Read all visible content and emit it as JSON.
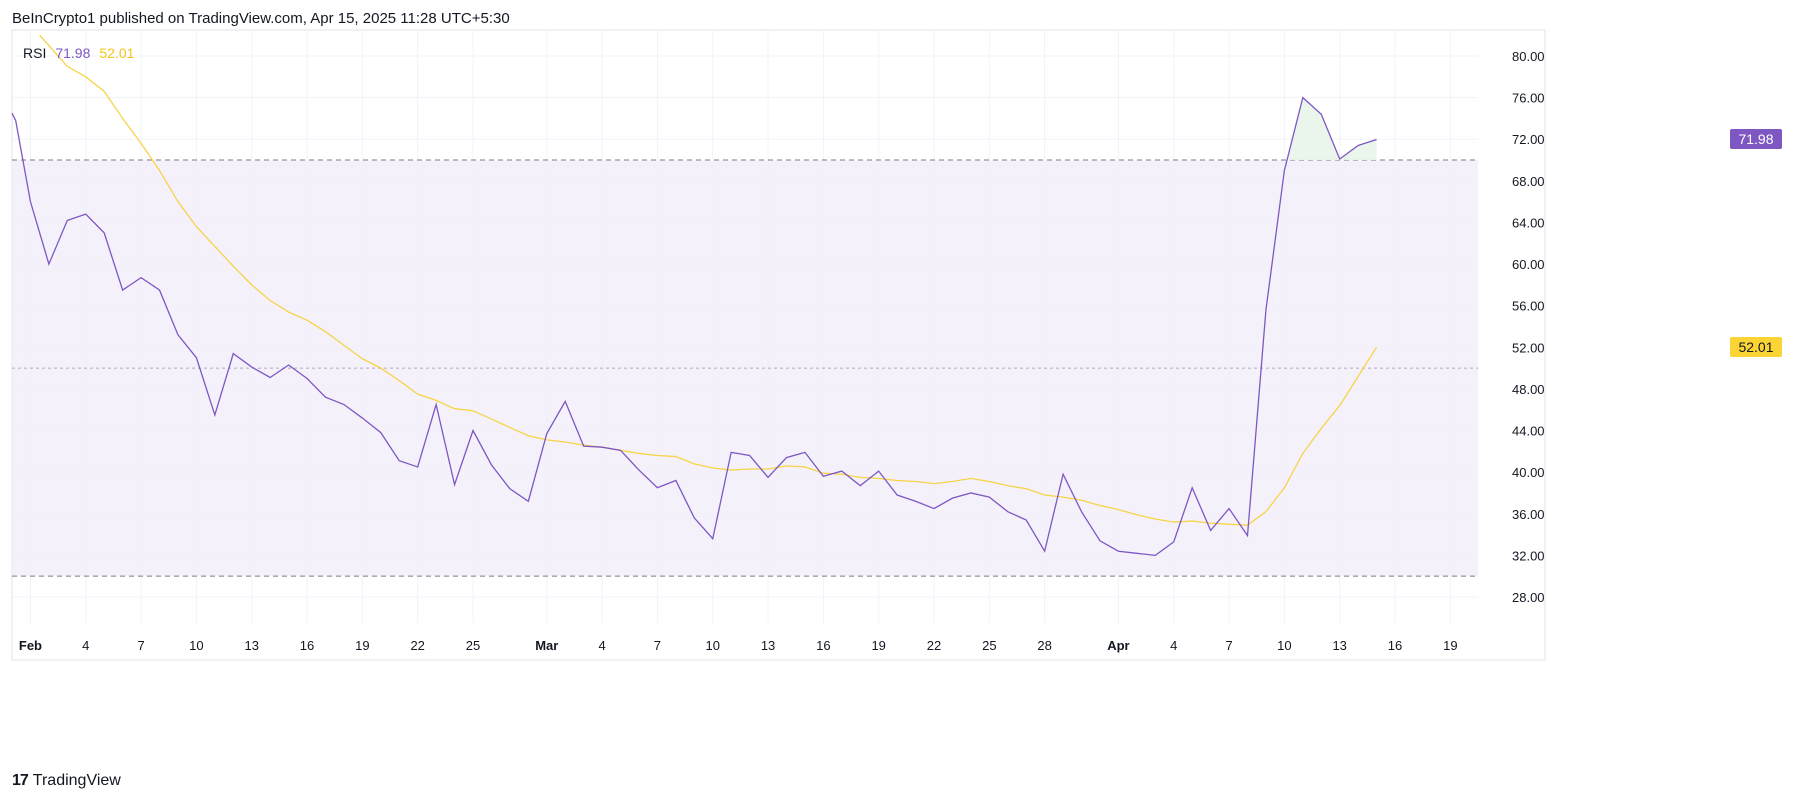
{
  "header": {
    "published_text": "BeInCrypto1 published on TradingView.com, Apr 15, 2025 11:28 UTC+5:30"
  },
  "footer": {
    "logo_glyph": "17",
    "brand": "TradingView"
  },
  "colors": {
    "rsi_line": "#7e57c2",
    "ma_line": "#f5d447",
    "band_fill": "#f3eefa",
    "ob_fill": "#e8f5e9",
    "rsi_badge_bg": "#7e57c2",
    "ma_badge_bg": "#fcd535",
    "grid": "#f0f3fa"
  },
  "chart_data": {
    "type": "line",
    "legend": {
      "name": "RSI",
      "rsi_value": "71.98",
      "ma_value": "52.01",
      "placement": "top-left"
    },
    "ylim": [
      25.5,
      82.5
    ],
    "y_ticks": [
      "80.00",
      "76.00",
      "72.00",
      "68.00",
      "64.00",
      "60.00",
      "56.00",
      "52.00",
      "48.00",
      "44.00",
      "40.00",
      "36.00",
      "32.00",
      "28.00"
    ],
    "x_ticks": [
      {
        "label": "Feb",
        "day": 1,
        "bold": true
      },
      {
        "label": "4",
        "day": 4
      },
      {
        "label": "7",
        "day": 7
      },
      {
        "label": "10",
        "day": 10
      },
      {
        "label": "13",
        "day": 13
      },
      {
        "label": "16",
        "day": 16
      },
      {
        "label": "19",
        "day": 19
      },
      {
        "label": "22",
        "day": 22
      },
      {
        "label": "25",
        "day": 25
      },
      {
        "label": "Mar",
        "day": 29,
        "bold": true
      },
      {
        "label": "4",
        "day": 32
      },
      {
        "label": "7",
        "day": 35
      },
      {
        "label": "10",
        "day": 38
      },
      {
        "label": "13",
        "day": 41
      },
      {
        "label": "16",
        "day": 44
      },
      {
        "label": "19",
        "day": 47
      },
      {
        "label": "22",
        "day": 50
      },
      {
        "label": "25",
        "day": 53
      },
      {
        "label": "28",
        "day": 56
      },
      {
        "label": "Apr",
        "day": 60,
        "bold": true
      },
      {
        "label": "4",
        "day": 63
      },
      {
        "label": "7",
        "day": 66
      },
      {
        "label": "10",
        "day": 69
      },
      {
        "label": "13",
        "day": 72
      },
      {
        "label": "16",
        "day": 75
      },
      {
        "label": "19",
        "day": 78
      }
    ],
    "x_range_days": [
      0,
      79.5
    ],
    "bands": {
      "upper": 70,
      "middle": 50,
      "lower": 30
    },
    "grid": true,
    "series": [
      {
        "key": "rsi",
        "points": [
          [
            0,
            74.5
          ],
          [
            0.2,
            73.8
          ],
          [
            1,
            66
          ],
          [
            2,
            60
          ],
          [
            3,
            64.2
          ],
          [
            4,
            64.8
          ],
          [
            5,
            63
          ],
          [
            6,
            57.5
          ],
          [
            7,
            58.7
          ],
          [
            8,
            57.5
          ],
          [
            9,
            53.2
          ],
          [
            10,
            51
          ],
          [
            11,
            45.5
          ],
          [
            12,
            51.4
          ],
          [
            13,
            50.1
          ],
          [
            14,
            49.1
          ],
          [
            15,
            50.3
          ],
          [
            16,
            49
          ],
          [
            17,
            47.2
          ],
          [
            18,
            46.5
          ],
          [
            19,
            45.2
          ],
          [
            20,
            43.8
          ],
          [
            21,
            41.1
          ],
          [
            22,
            40.5
          ],
          [
            23,
            46.5
          ],
          [
            24,
            38.8
          ],
          [
            25,
            44
          ],
          [
            26,
            40.7
          ],
          [
            27,
            38.4
          ],
          [
            28,
            37.2
          ],
          [
            29,
            43.7
          ],
          [
            30,
            46.8
          ],
          [
            31,
            42.5
          ],
          [
            32,
            42.4
          ],
          [
            33,
            42.1
          ],
          [
            34,
            40.2
          ],
          [
            35,
            38.5
          ],
          [
            36,
            39.2
          ],
          [
            37,
            35.6
          ],
          [
            38,
            33.6
          ],
          [
            39,
            41.9
          ],
          [
            40,
            41.6
          ],
          [
            41,
            39.5
          ],
          [
            42,
            41.4
          ],
          [
            43,
            41.9
          ],
          [
            44,
            39.6
          ],
          [
            45,
            40.1
          ],
          [
            46,
            38.7
          ],
          [
            47,
            40.1
          ],
          [
            48,
            37.8
          ],
          [
            49,
            37.2
          ],
          [
            50,
            36.5
          ],
          [
            51,
            37.5
          ],
          [
            52,
            38
          ],
          [
            53,
            37.6
          ],
          [
            54,
            36.2
          ],
          [
            55,
            35.4
          ],
          [
            56,
            32.4
          ],
          [
            57,
            39.8
          ],
          [
            58,
            36.2
          ],
          [
            59,
            33.4
          ],
          [
            60,
            32.4
          ],
          [
            61,
            32.2
          ],
          [
            62,
            32
          ],
          [
            63,
            33.3
          ],
          [
            64,
            38.5
          ],
          [
            65,
            34.4
          ],
          [
            66,
            36.5
          ],
          [
            67,
            33.9
          ],
          [
            68,
            55.6
          ],
          [
            69,
            69
          ],
          [
            70,
            76
          ],
          [
            71,
            74.4
          ],
          [
            72,
            70.1
          ],
          [
            73,
            71.4
          ],
          [
            74,
            71.98
          ]
        ]
      },
      {
        "key": "ma",
        "points": [
          [
            1.5,
            82
          ],
          [
            2,
            81
          ],
          [
            3,
            79
          ],
          [
            4,
            78
          ],
          [
            5,
            76.6
          ],
          [
            6,
            74
          ],
          [
            7,
            71.6
          ],
          [
            8,
            69
          ],
          [
            9,
            66
          ],
          [
            10,
            63.6
          ],
          [
            11,
            61.7
          ],
          [
            12,
            59.8
          ],
          [
            13,
            58
          ],
          [
            14,
            56.5
          ],
          [
            15,
            55.4
          ],
          [
            16,
            54.6
          ],
          [
            17,
            53.5
          ],
          [
            18,
            52.2
          ],
          [
            19,
            50.9
          ],
          [
            20,
            50
          ],
          [
            21,
            48.8
          ],
          [
            22,
            47.5
          ],
          [
            23,
            46.9
          ],
          [
            24,
            46.1
          ],
          [
            25,
            45.9
          ],
          [
            26,
            45.1
          ],
          [
            27,
            44.3
          ],
          [
            28,
            43.5
          ],
          [
            29,
            43.1
          ],
          [
            30,
            42.9
          ],
          [
            31,
            42.6
          ],
          [
            32,
            42.4
          ],
          [
            33,
            42.1
          ],
          [
            34,
            41.8
          ],
          [
            35,
            41.6
          ],
          [
            36,
            41.5
          ],
          [
            37,
            40.8
          ],
          [
            38,
            40.4
          ],
          [
            39,
            40.2
          ],
          [
            40,
            40.3
          ],
          [
            41,
            40.3
          ],
          [
            42,
            40.6
          ],
          [
            43,
            40.5
          ],
          [
            44,
            39.9
          ],
          [
            45,
            39.8
          ],
          [
            46,
            39.5
          ],
          [
            47,
            39.4
          ],
          [
            48,
            39.2
          ],
          [
            49,
            39.1
          ],
          [
            50,
            38.9
          ],
          [
            51,
            39.1
          ],
          [
            52,
            39.4
          ],
          [
            53,
            39.1
          ],
          [
            54,
            38.7
          ],
          [
            55,
            38.4
          ],
          [
            56,
            37.8
          ],
          [
            57,
            37.6
          ],
          [
            58,
            37.3
          ],
          [
            59,
            36.8
          ],
          [
            60,
            36.4
          ],
          [
            61,
            35.9
          ],
          [
            62,
            35.5
          ],
          [
            63,
            35.2
          ],
          [
            64,
            35.3
          ],
          [
            65,
            35.1
          ],
          [
            66,
            35
          ],
          [
            67,
            34.9
          ],
          [
            68,
            36.2
          ],
          [
            69,
            38.5
          ],
          [
            70,
            41.8
          ],
          [
            71,
            44.2
          ],
          [
            72,
            46.4
          ],
          [
            73,
            49.2
          ],
          [
            74,
            52.01
          ]
        ]
      }
    ]
  }
}
